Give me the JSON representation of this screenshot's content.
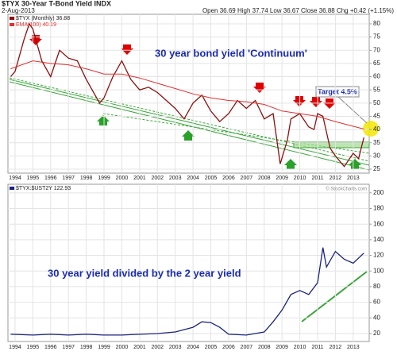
{
  "chart_data": [
    {
      "type": "line",
      "title": "$TYX 30-Year T-Bond Yield INDX",
      "date": "2-Aug-2013",
      "quote": "Open 36.69  High 37.74  Low 36.67  Close 36.88  Chg +0.42 (+1.15%)",
      "annotations": [
        "30 year bond yield 'Continuum'",
        "Target 4.5%"
      ],
      "xlim": [
        1993.6,
        2013.9
      ],
      "xticks": [
        1994,
        1995,
        1996,
        1997,
        1998,
        1999,
        2000,
        2001,
        2002,
        2003,
        2004,
        2005,
        2006,
        2007,
        2008,
        2009,
        2010,
        2011,
        2012,
        2013
      ],
      "ylim": [
        23.5,
        83.6
      ],
      "yticks": [
        25,
        30,
        35,
        40,
        45,
        50,
        55,
        60,
        65,
        70,
        75,
        80
      ],
      "grid": true,
      "series": [
        {
          "name": "$TYX (Monthly) 36.88",
          "color": "#8b1010",
          "x": [
            1993.75,
            1994.0,
            1994.5,
            1994.8,
            1995.0,
            1995.5,
            1996.0,
            1996.5,
            1997.0,
            1997.5,
            1998.0,
            1998.75,
            1999.0,
            1999.5,
            2000.0,
            2000.5,
            2001.0,
            2001.5,
            2002.0,
            2002.5,
            2003.0,
            2003.5,
            2004.0,
            2004.5,
            2005.0,
            2005.5,
            2006.0,
            2006.5,
            2007.0,
            2007.5,
            2008.0,
            2008.5,
            2008.9,
            2009.3,
            2009.5,
            2010.0,
            2010.5,
            2010.8,
            2011.0,
            2011.3,
            2011.7,
            2012.0,
            2012.5,
            2012.8,
            2013.0,
            2013.3,
            2013.6
          ],
          "values": [
            60,
            62,
            74,
            80,
            78,
            66,
            60,
            70,
            67,
            66,
            59,
            50,
            52,
            60,
            66,
            59,
            55,
            56,
            54,
            51,
            48,
            44,
            50,
            53,
            47,
            43,
            46,
            51,
            48,
            51,
            44,
            46,
            27,
            36,
            44,
            46,
            41,
            40,
            46,
            45,
            33,
            30,
            26,
            29,
            31,
            29,
            37
          ]
        },
        {
          "name": "EMA(100) 40.19",
          "color": "#e03030",
          "x": [
            1993.75,
            1995,
            1996,
            1997,
            1998,
            1999,
            2000,
            2001,
            2002,
            2003,
            2004,
            2005,
            2006,
            2007,
            2008,
            2009,
            2010,
            2011,
            2012,
            2013.6
          ],
          "values": [
            63,
            66,
            65,
            64.5,
            63,
            61,
            61,
            59.5,
            57.5,
            55.5,
            53.5,
            52,
            51,
            50.5,
            49.5,
            47,
            46,
            45,
            43,
            40.19
          ]
        }
      ]
    },
    {
      "type": "line",
      "annotations": [
        "30 year yield divided by the 2 year yield",
        "© StockCharts.com"
      ],
      "xlim": [
        1993.6,
        2013.9
      ],
      "xticks": [
        1994,
        1995,
        1996,
        1997,
        1998,
        1999,
        2000,
        2001,
        2002,
        2003,
        2004,
        2005,
        2006,
        2007,
        2008,
        2009,
        2010,
        2011,
        2012,
        2013
      ],
      "ylim": [
        9.8,
        211
      ],
      "yticks": [
        20,
        40,
        60,
        80,
        100,
        120,
        140,
        160,
        180,
        200
      ],
      "grid": true,
      "series": [
        {
          "name": "$TYX:$UST2Y 122.93",
          "color": "#1a237e",
          "x": [
            1993.75,
            1995,
            1996,
            1997,
            1998,
            1999,
            2000,
            2001,
            2002,
            2003,
            2004,
            2004.5,
            2005,
            2005.5,
            2006,
            2007,
            2008,
            2008.5,
            2009,
            2009.5,
            2010,
            2010.5,
            2011,
            2011.3,
            2011.5,
            2012,
            2012.5,
            2013,
            2013.6
          ],
          "values": [
            19,
            18,
            19,
            18,
            19,
            18,
            18,
            19,
            20,
            22,
            28,
            35,
            34,
            28,
            19,
            18,
            22,
            35,
            50,
            70,
            75,
            70,
            85,
            130,
            105,
            125,
            115,
            110,
            122.93
          ]
        }
      ]
    }
  ]
}
